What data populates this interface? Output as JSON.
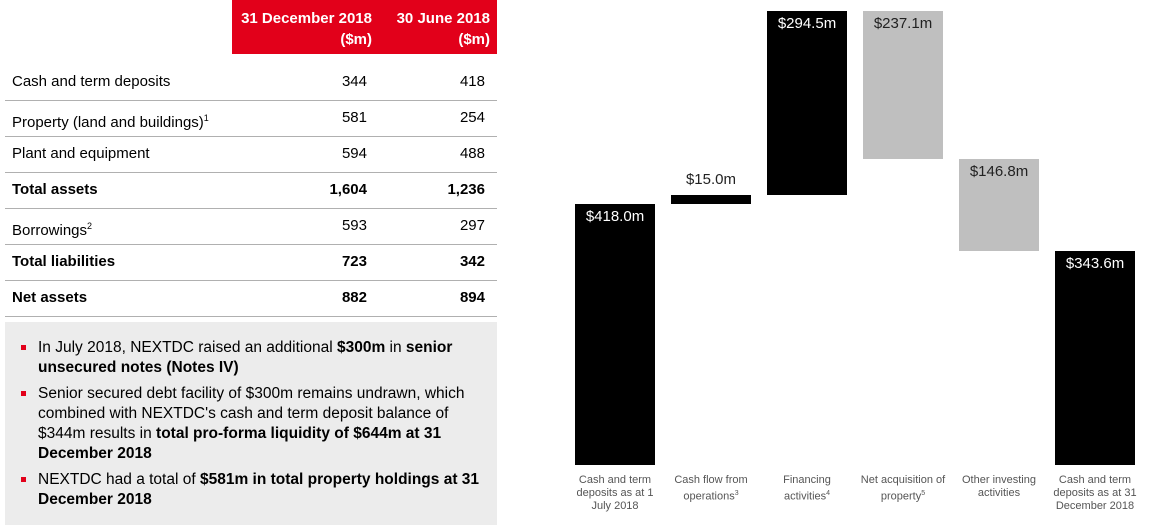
{
  "table": {
    "columns": [
      {
        "date": "31 December 2018",
        "unit": "($m)"
      },
      {
        "date": "30 June 2018",
        "unit": "($m)"
      }
    ],
    "rows": [
      {
        "label": "Cash and term deposits",
        "values": [
          "344",
          "418"
        ]
      },
      {
        "label": "Property (land and buildings)",
        "note": "1",
        "values": [
          "581",
          "254"
        ]
      },
      {
        "label": "Plant and equipment",
        "values": [
          "594",
          "488"
        ]
      },
      {
        "label": "Total assets",
        "bold": true,
        "values": [
          "1,604",
          "1,236"
        ]
      },
      {
        "label": "Borrowings",
        "note": "2",
        "values": [
          "593",
          "297"
        ]
      },
      {
        "label": "Total liabilities",
        "bold": true,
        "values": [
          "723",
          "342"
        ]
      },
      {
        "label": "Net assets",
        "bold": true,
        "values": [
          "882",
          "894"
        ]
      }
    ]
  },
  "notes": [
    [
      {
        "text": "In July 2018, NEXTDC raised an additional "
      },
      {
        "text": "$300m",
        "bold": true
      },
      {
        "text": " in "
      },
      {
        "text": "senior unsecured notes (Notes IV)",
        "bold": true
      }
    ],
    [
      {
        "text": "Senior secured debt facility of $300m remains undrawn, which combined with NEXTDC's cash and term deposit balance of $344m results in "
      },
      {
        "text": "total pro-forma liquidity of $644m at 31 December 2018",
        "bold": true
      }
    ],
    [
      {
        "text": "NEXTDC had a total of "
      },
      {
        "text": "$581m in total property holdings at 31 December 2018",
        "bold": true
      }
    ]
  ],
  "chart_data": {
    "type": "waterfall",
    "categories": [
      "Cash and term deposits as at 1 July 2018",
      "Cash flow from operations",
      "Financing activities",
      "Net acquisition of property",
      "Other investing activities",
      "Cash and term deposits as at 31 December 2018"
    ],
    "category_notes": [
      null,
      "3",
      "4",
      "5",
      null,
      null
    ],
    "measures": [
      "absolute",
      "relative",
      "relative",
      "relative",
      "relative",
      "total"
    ],
    "values": [
      418.0,
      15.0,
      294.5,
      -237.1,
      -146.8,
      343.6
    ],
    "value_labels": [
      "$418.0m",
      "$15.0m",
      "$294.5m",
      "$237.1m",
      "$146.8m",
      "$343.6m"
    ],
    "colors": {
      "increase": "#000000",
      "decrease": "#bfbfbf",
      "total": "#000000"
    }
  }
}
